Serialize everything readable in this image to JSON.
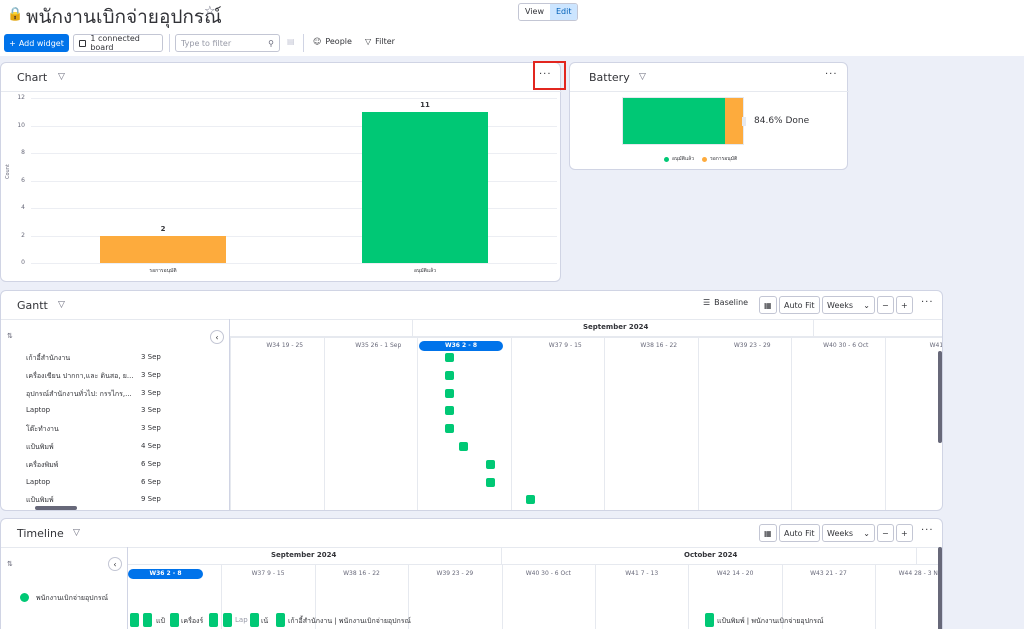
{
  "board": {
    "title": "พนักงานเบิกจ่ายอุปกรณ์",
    "view_label": "View",
    "edit_label": "Edit"
  },
  "toolbar": {
    "add_widget": "Add widget",
    "connected": "1 connected board",
    "filter_placeholder": "Type to filter",
    "people": "People",
    "filter": "Filter"
  },
  "chart_widget": {
    "title": "Chart",
    "more": "···",
    "ylabel": "Count"
  },
  "chart_data": {
    "type": "bar",
    "categories": [
      "รอการอนุมัติ",
      "อนุมัติแล้ว"
    ],
    "values": [
      2,
      11
    ],
    "colors": [
      "#fdab3d",
      "#00c875"
    ],
    "ylabel": "Count",
    "ylim": [
      0,
      12
    ],
    "yticks": [
      "0",
      "2",
      "4",
      "6",
      "8",
      "10",
      "12"
    ]
  },
  "battery": {
    "title": "Battery",
    "more": "···",
    "done_text": "84.6% Done",
    "legend": [
      {
        "label": "อนุมัติแล้ว",
        "color": "#00c875"
      },
      {
        "label": "รอการอนุมัติ",
        "color": "#fdab3d"
      }
    ],
    "segments": [
      {
        "value": 84.6,
        "color": "#00c875"
      },
      {
        "value": 15.4,
        "color": "#fdab3d"
      }
    ]
  },
  "gantt": {
    "title": "Gantt",
    "baseline": "Baseline",
    "autofit": "Auto Fit",
    "weeks": "Weeks",
    "minus": "−",
    "plus": "+",
    "more": "···",
    "month": "September 2024",
    "weeks_list": [
      "W34 19 - 25",
      "W35 26 - 1 Sep",
      "W36 2 - 8",
      "W37 9 - 15",
      "W38 16 - 22",
      "W39 23 - 29",
      "W40 30 - 6 Oct",
      "W41 7"
    ],
    "rows": [
      {
        "name": "เก้าอี้สำนักงาน",
        "date": "3 Sep"
      },
      {
        "name": "เครื่องเขียน ปากกา,และ ดินสอ, ย...",
        "date": "3 Sep"
      },
      {
        "name": "อุปกรณ์สำนักงานทั่วไป: กรรไกร,...",
        "date": "3 Sep"
      },
      {
        "name": "Laptop",
        "date": "3 Sep"
      },
      {
        "name": "โต๊ะทำงาน",
        "date": "3 Sep"
      },
      {
        "name": "แป้นพิมพ์",
        "date": "4 Sep"
      },
      {
        "name": "เครื่องพิมพ์",
        "date": "6 Sep"
      },
      {
        "name": "Laptop",
        "date": "6 Sep"
      },
      {
        "name": "แป้นพิมพ์",
        "date": "9 Sep"
      }
    ]
  },
  "timeline": {
    "title": "Timeline",
    "autofit": "Auto Fit",
    "weeks": "Weeks",
    "minus": "−",
    "plus": "+",
    "more": "···",
    "months": [
      "September 2024",
      "October 2024"
    ],
    "weeks_list": [
      "W36 2 - 8",
      "W37 9 - 15",
      "W38 16 - 22",
      "W39 23 - 29",
      "W40 30 - 6 Oct",
      "W41 7 - 13",
      "W42 14 - 20",
      "W43 21 - 27",
      "W44 28 - 3 Nov"
    ],
    "group": "พนักงานเบิกจ่ายอุปกรณ์",
    "labels": [
      "แป้",
      "เครื่องร์",
      "Lap",
      "เน้",
      "เก้าอี้สำนักงาน | พนักงานเบิกจ่ายอุปกรณ์"
    ],
    "label_right": "แป้นพิมพ์ | พนักงานเบิกจ่ายอุปกรณ์"
  }
}
